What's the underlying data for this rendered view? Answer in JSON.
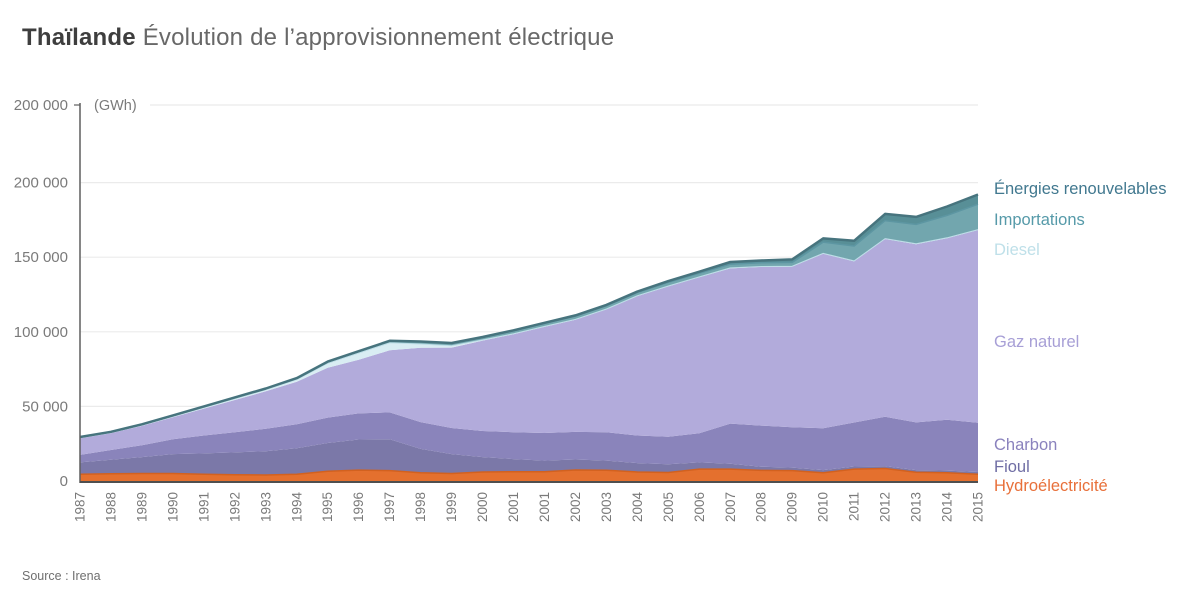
{
  "title": {
    "country": "Thaïlande",
    "subtitle": "Évolution de l’approvisionnement électrique"
  },
  "source": "Source : Irena",
  "y_axis": {
    "unit": "(GWh)",
    "top_label": "200 000",
    "ticks": [
      {
        "label": "200 000",
        "value": 200000
      },
      {
        "label": "150 000",
        "value": 150000
      },
      {
        "label": "100 000",
        "value": 100000
      },
      {
        "label": "50 000",
        "value": 50000
      },
      {
        "label": "0",
        "value": 0
      }
    ]
  },
  "legend": [
    {
      "label": "Énergies renouvelables",
      "color": "#41788f"
    },
    {
      "label": "Importations",
      "color": "#569aa9"
    },
    {
      "label": "Diesel",
      "color": "#bfe0e9"
    },
    {
      "label": "Gaz naturel",
      "color": "#a79fd6"
    },
    {
      "label": "Charbon",
      "color": "#8a82bd"
    },
    {
      "label": "Fioul",
      "color": "#6f6da4"
    },
    {
      "label": "Hydroélectricité",
      "color": "#e8703a"
    }
  ],
  "colors": {
    "grid": "#ebebeb",
    "axis_line": "#5f5f5f",
    "baseline": "#4f4f4f",
    "tick_text": "#7a7a7a",
    "top_stroke": "#47747e"
  },
  "chart_data": {
    "type": "area",
    "stacked": true,
    "ylabel_unit": "GWh",
    "ylim": [
      0,
      252000
    ],
    "gridlines": [
      200000,
      150000,
      100000,
      50000
    ],
    "x": [
      "1987",
      "1988",
      "1989",
      "1990",
      "1991",
      "1992",
      "1993",
      "1994",
      "1995",
      "1996",
      "1997",
      "1998",
      "1999",
      "2000",
      "2001",
      "2001",
      "2002",
      "2003",
      "2004",
      "2005",
      "2006",
      "2007",
      "2008",
      "2009",
      "2010",
      "2011",
      "2012",
      "2013",
      "2014",
      "2015"
    ],
    "series": [
      {
        "name": "Hydroélectricité",
        "fill": "#e4702e",
        "edge": "#d2611f",
        "edge_width": 1.5,
        "values": [
          4500,
          4800,
          5000,
          5000,
          4500,
          4200,
          4000,
          4500,
          6500,
          7300,
          7000,
          5500,
          5000,
          6000,
          6200,
          6200,
          7400,
          7200,
          6000,
          5700,
          8000,
          8000,
          7100,
          7000,
          5500,
          8000,
          8400,
          5800,
          5500,
          4500
        ]
      },
      {
        "name": "Fioul",
        "fill": "#7b78a8",
        "edge": null,
        "edge_width": 0,
        "values": [
          8000,
          9500,
          11000,
          13000,
          14000,
          15000,
          16000,
          17500,
          19000,
          20500,
          21000,
          16000,
          13000,
          10000,
          8500,
          7500,
          7000,
          6500,
          6000,
          5500,
          4500,
          3500,
          2500,
          2000,
          1800,
          1700,
          1600,
          1500,
          1500,
          1500
        ]
      },
      {
        "name": "Charbon",
        "fill": "#8a84bb",
        "edge": null,
        "edge_width": 0,
        "values": [
          5000,
          6500,
          8000,
          10000,
          12000,
          13500,
          15000,
          16000,
          17000,
          17500,
          18000,
          18000,
          17500,
          17500,
          18000,
          18500,
          18500,
          19000,
          18500,
          18500,
          19500,
          27000,
          27500,
          27000,
          28000,
          29500,
          33000,
          32000,
          34000,
          33000
        ]
      },
      {
        "name": "Gaz naturel",
        "fill": "#b2abdb",
        "edge": null,
        "edge_width": 0,
        "values": [
          11100,
          11300,
          12900,
          14700,
          18000,
          21600,
          25100,
          28500,
          33400,
          36000,
          41600,
          49800,
          53900,
          60600,
          65700,
          71100,
          75200,
          82300,
          93400,
          100700,
          104500,
          104000,
          106400,
          107700,
          117000,
          108000,
          119200,
          119400,
          121700,
          129200
        ]
      },
      {
        "name": "Diesel",
        "fill": "#d9edf3",
        "edge": "#bcdde6",
        "edge_width": 1,
        "values": [
          300,
          300,
          400,
          500,
          600,
          800,
          1000,
          1500,
          3000,
          4500,
          5000,
          2500,
          1200,
          500,
          300,
          300,
          300,
          300,
          300,
          300,
          300,
          300,
          300,
          300,
          300,
          300,
          300,
          300,
          300,
          300
        ]
      },
      {
        "name": "Importations",
        "fill": "#72a6ae",
        "edge": "#5d96a2",
        "edge_width": 1.5,
        "values": [
          500,
          500,
          600,
          700,
          800,
          800,
          800,
          800,
          900,
          1000,
          1200,
          1500,
          1600,
          1600,
          2000,
          2000,
          2200,
          2200,
          2200,
          2500,
          2500,
          2500,
          2500,
          2500,
          7500,
          10000,
          12000,
          13000,
          15000,
          17000
        ]
      },
      {
        "name": "Énergies renouvelables",
        "fill": "#588f97",
        "edge": "#47747e",
        "edge_width": 2.5,
        "values": [
          100,
          100,
          100,
          100,
          100,
          100,
          100,
          200,
          200,
          200,
          200,
          200,
          300,
          300,
          300,
          400,
          400,
          500,
          600,
          800,
          1000,
          1500,
          1500,
          2000,
          2500,
          3500,
          4500,
          5000,
          6000,
          6500
        ]
      }
    ]
  }
}
